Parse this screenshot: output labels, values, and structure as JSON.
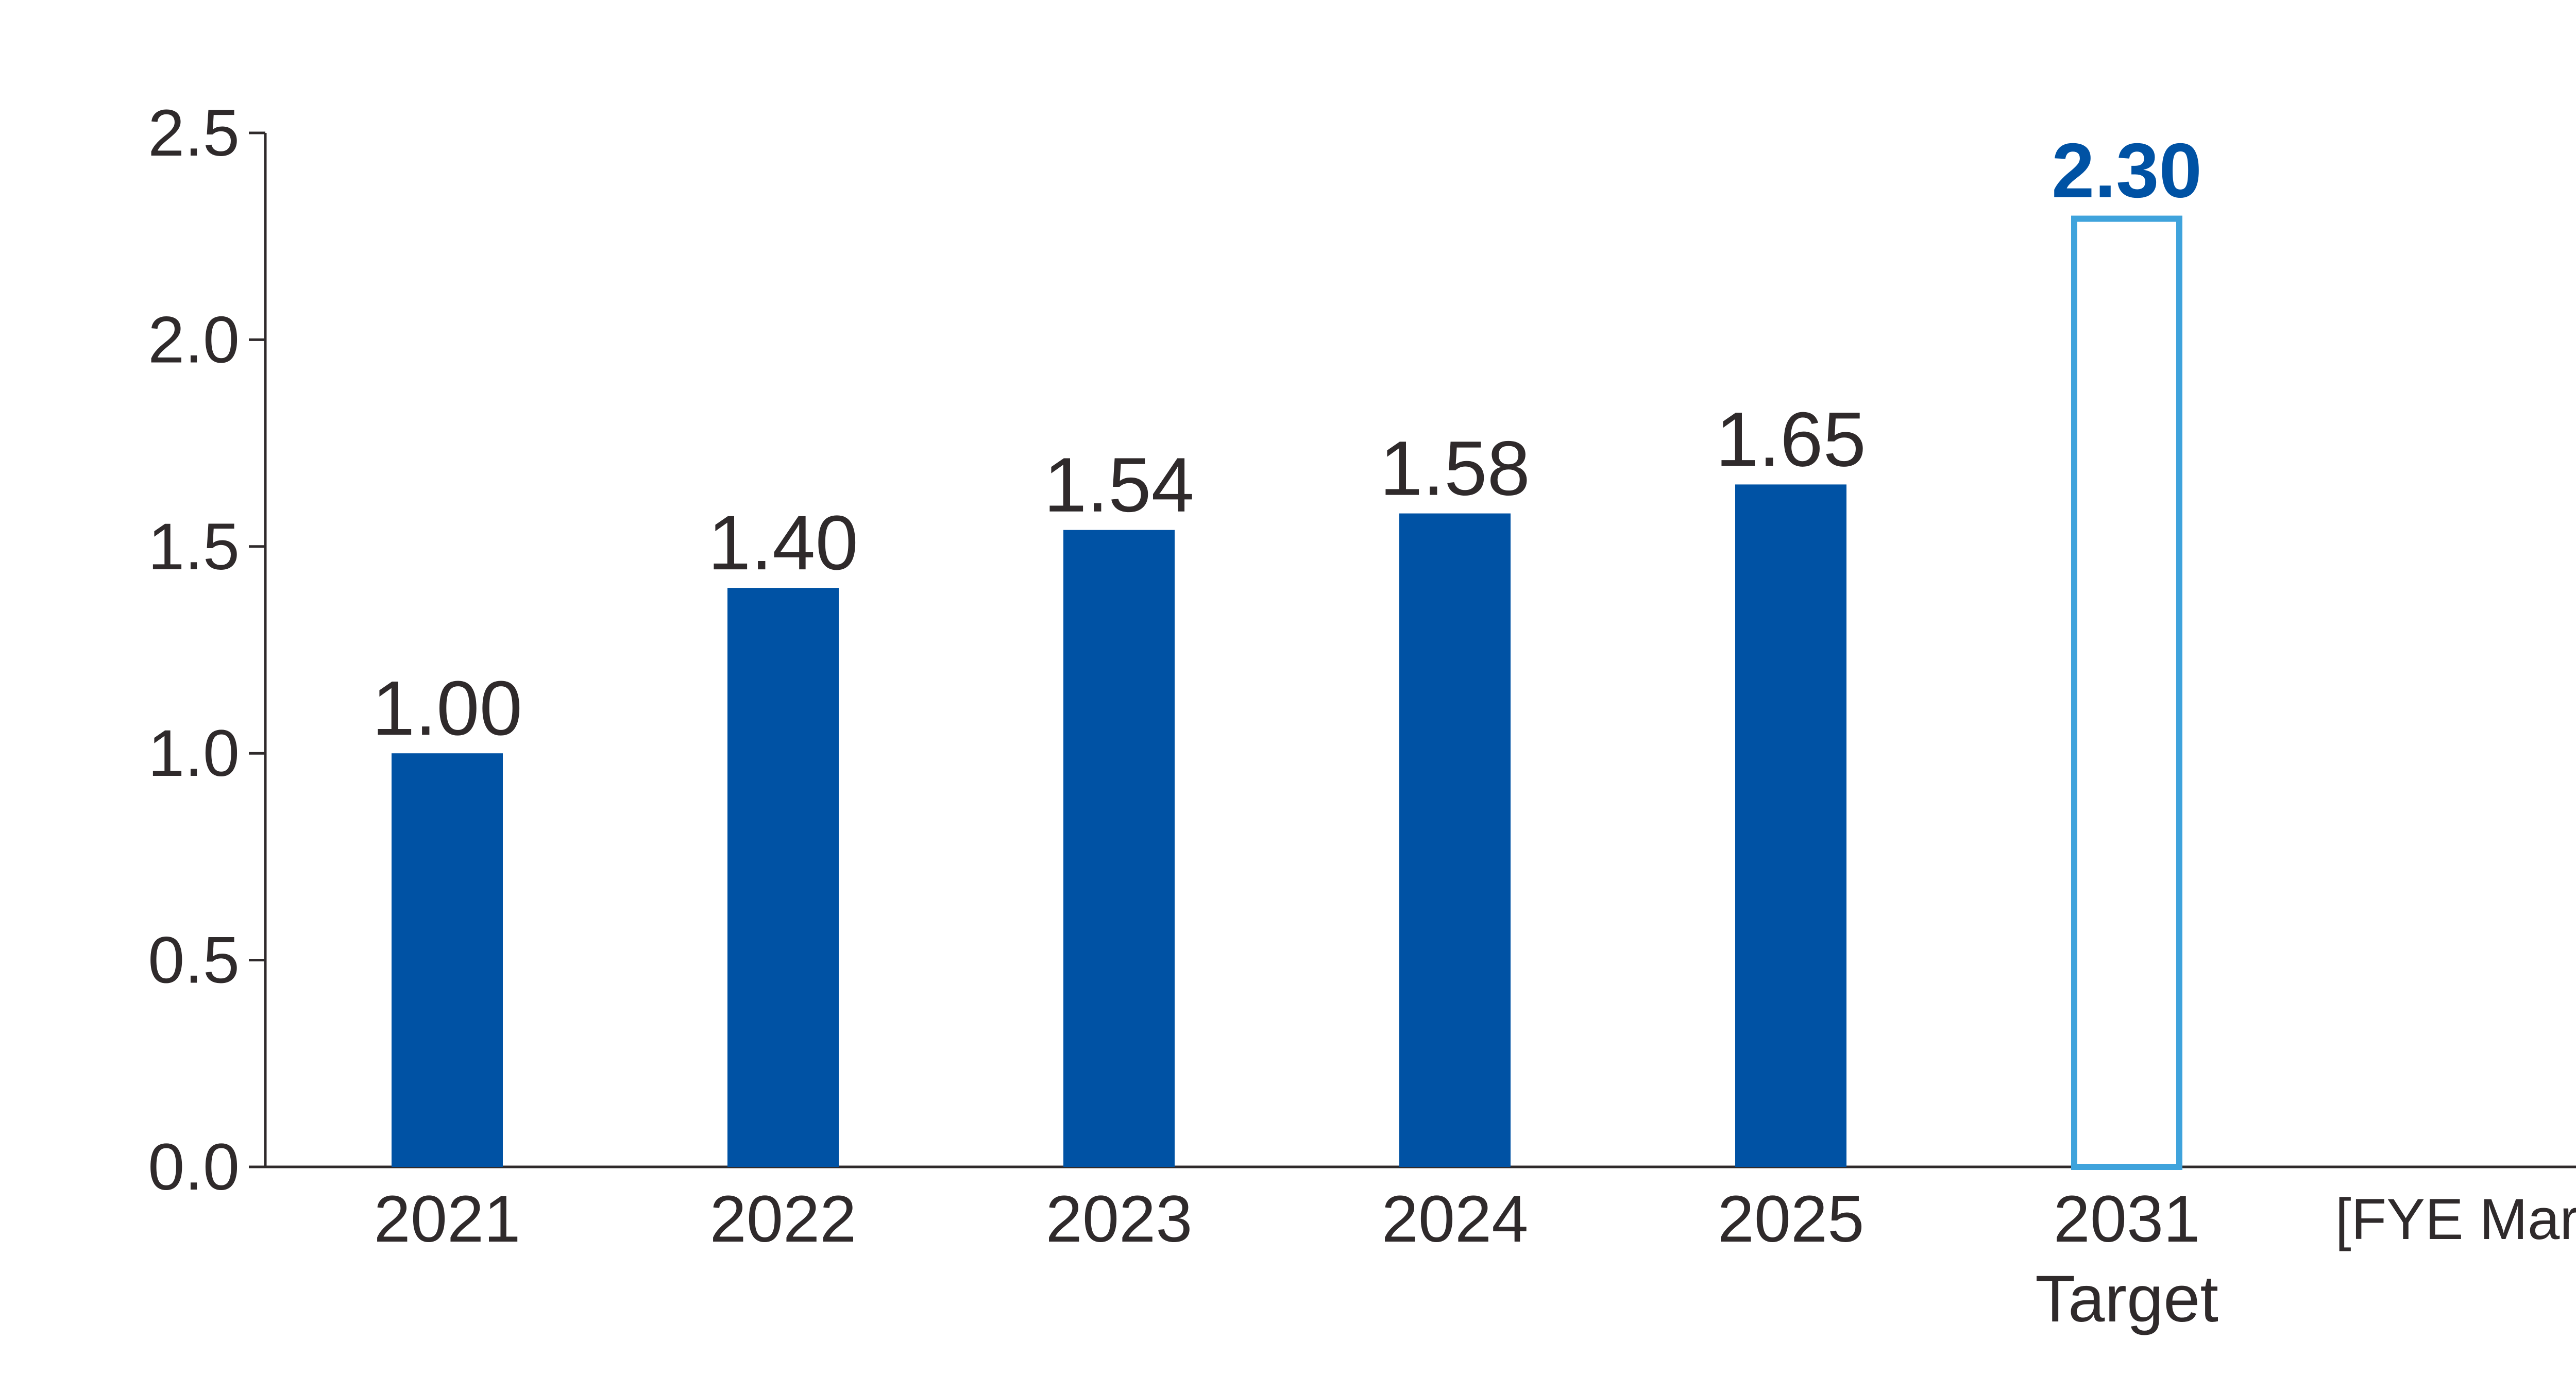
{
  "chart_data": {
    "type": "bar",
    "categories": [
      "2021",
      "2022",
      "2023",
      "2024",
      "2025",
      "2031"
    ],
    "category_sublabels": [
      "",
      "",
      "",
      "",
      "",
      "Target"
    ],
    "values": [
      1.0,
      1.4,
      1.54,
      1.58,
      1.65,
      2.3
    ],
    "value_labels": [
      "1.00",
      "1.40",
      "1.54",
      "1.58",
      "1.65",
      "2.30"
    ],
    "bar_styles": [
      "actual",
      "actual",
      "actual",
      "actual",
      "actual",
      "target"
    ],
    "ylim": [
      0,
      2.5
    ],
    "yticks": [
      "0.0",
      "0.5",
      "1.0",
      "1.5",
      "2.0",
      "2.5"
    ],
    "x_unit_label": "[FYE March]",
    "grid": false,
    "colors": {
      "actual_bar": "#0052A4",
      "target_outline": "#3FA3DC",
      "target_label": "#0052A4",
      "text": "#2F2A2B",
      "axis": "#2F2A2B"
    }
  }
}
